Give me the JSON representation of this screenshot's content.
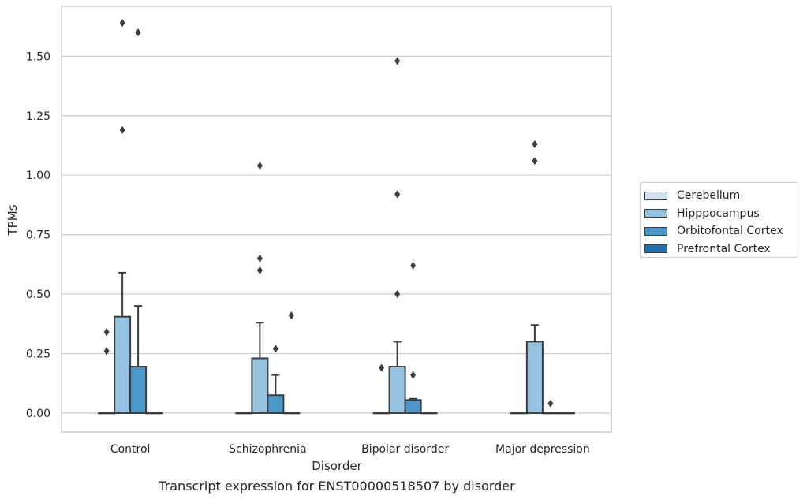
{
  "chart_data": {
    "type": "box",
    "title": "Transcript expression for ENST00000518507 by disorder",
    "xlabel": "Disorder",
    "ylabel": "TPMs",
    "categories": [
      "Control",
      "Schizophrenia",
      "Bipolar disorder",
      "Major depression"
    ],
    "ylim": [
      -0.08,
      1.71
    ],
    "yticks": [
      0.0,
      0.25,
      0.5,
      0.75,
      1.0,
      1.25,
      1.5
    ],
    "ytick_labels": [
      "0.00",
      "0.25",
      "0.50",
      "0.75",
      "1.00",
      "1.25",
      "1.50"
    ],
    "grid": true,
    "legend_position": "right",
    "series": [
      {
        "name": "Cerebellum",
        "color": "#d0e1f2",
        "boxes": [
          {
            "q1": 0,
            "median": 0,
            "q3": 0,
            "whisker_low": 0,
            "whisker_high": 0,
            "outliers": [
              0.26,
              0.34
            ]
          },
          {
            "q1": 0,
            "median": 0,
            "q3": 0,
            "whisker_low": 0,
            "whisker_high": 0,
            "outliers": []
          },
          {
            "q1": 0,
            "median": 0,
            "q3": 0,
            "whisker_low": 0,
            "whisker_high": 0,
            "outliers": [
              0.19
            ]
          },
          {
            "q1": 0,
            "median": 0,
            "q3": 0,
            "whisker_low": 0,
            "whisker_high": 0,
            "outliers": []
          }
        ]
      },
      {
        "name": "Hipppocampus",
        "color": "#94c4df",
        "boxes": [
          {
            "q1": 0,
            "median": 0,
            "q3": 0.405,
            "whisker_low": 0,
            "whisker_high": 0.59,
            "outliers": [
              1.19,
              1.64
            ]
          },
          {
            "q1": 0,
            "median": 0,
            "q3": 0.23,
            "whisker_low": 0,
            "whisker_high": 0.38,
            "outliers": [
              0.6,
              0.65,
              1.04
            ]
          },
          {
            "q1": 0,
            "median": 0,
            "q3": 0.195,
            "whisker_low": 0,
            "whisker_high": 0.3,
            "outliers": [
              0.5,
              0.92,
              1.48
            ]
          },
          {
            "q1": 0,
            "median": 0,
            "q3": 0.3,
            "whisker_low": 0,
            "whisker_high": 0.37,
            "outliers": [
              1.06,
              1.13
            ]
          }
        ]
      },
      {
        "name": "Orbitofontal Cortex",
        "color": "#4a98c9",
        "boxes": [
          {
            "q1": 0,
            "median": 0,
            "q3": 0.195,
            "whisker_low": 0,
            "whisker_high": 0.45,
            "outliers": [
              1.6
            ]
          },
          {
            "q1": 0,
            "median": 0,
            "q3": 0.075,
            "whisker_low": 0,
            "whisker_high": 0.16,
            "outliers": [
              0.27
            ]
          },
          {
            "q1": 0,
            "median": 0,
            "q3": 0.055,
            "whisker_low": 0,
            "whisker_high": 0.06,
            "outliers": [
              0.16,
              0.62
            ]
          },
          {
            "q1": 0,
            "median": 0,
            "q3": 0,
            "whisker_low": 0,
            "whisker_high": 0,
            "outliers": [
              0.04
            ]
          }
        ]
      },
      {
        "name": "Prefrontal Cortex",
        "color": "#2070b4",
        "boxes": [
          {
            "q1": 0,
            "median": 0,
            "q3": 0,
            "whisker_low": 0,
            "whisker_high": 0,
            "outliers": []
          },
          {
            "q1": 0,
            "median": 0,
            "q3": 0,
            "whisker_low": 0,
            "whisker_high": 0,
            "outliers": [
              0.41
            ]
          },
          {
            "q1": 0,
            "median": 0,
            "q3": 0,
            "whisker_low": 0,
            "whisker_high": 0,
            "outliers": []
          },
          {
            "q1": 0,
            "median": 0,
            "q3": 0,
            "whisker_low": 0,
            "whisker_high": 0,
            "outliers": []
          }
        ]
      }
    ]
  }
}
